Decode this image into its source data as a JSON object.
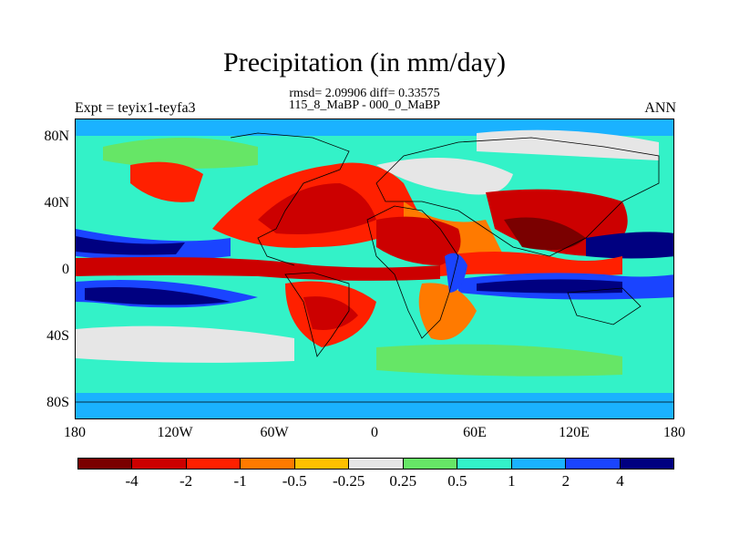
{
  "title": "Precipitation (in mm/day)",
  "stats": {
    "rmsd": "rmsd= 2.09906 diff= 0.33575",
    "comparison": "115_8_MaBP - 000_0_MaBP"
  },
  "experiment_label": "Expt = teyix1-teyfa3",
  "season": "ANN",
  "axes": {
    "lat_labels": [
      "80N",
      "40N",
      "0",
      "40S",
      "80S"
    ],
    "lon_labels": [
      "180",
      "120W",
      "60W",
      "0",
      "60E",
      "120E",
      "180"
    ]
  },
  "colorbar": {
    "colors": [
      "#7a0000",
      "#cc0000",
      "#ff2000",
      "#ff7a00",
      "#ffc000",
      "#e6e6e6",
      "#66e666",
      "#33f2c8",
      "#1ab2ff",
      "#1a44ff",
      "#000080"
    ],
    "labels": [
      "-4",
      "-2",
      "-1",
      "-0.5",
      "-0.25",
      "0.25",
      "0.5",
      "1",
      "2",
      "4"
    ]
  },
  "chart_data": {
    "type": "heatmap",
    "title": "Precipitation (in mm/day)",
    "subtitle": "rmsd= 2.09906 diff= 0.33575",
    "xlabel": "",
    "ylabel": "",
    "x_range": [
      -180,
      180
    ],
    "y_range": [
      -90,
      90
    ],
    "contour_levels": [
      -4,
      -2,
      -1,
      -0.5,
      -0.25,
      0.25,
      0.5,
      1,
      2,
      4
    ],
    "features": [
      {
        "region": "Tropical North Pacific band (~12N)",
        "value": 4
      },
      {
        "region": "Equatorial Pacific strip (~3N)",
        "value": -4
      },
      {
        "region": "South Pacific band (~15S)",
        "value": 4
      },
      {
        "region": "North America / Eurasia interior",
        "value": -2
      },
      {
        "region": "North Africa / Sahel",
        "value": -4
      },
      {
        "region": "South America interior",
        "value": -2
      },
      {
        "region": "South / East Asia",
        "value": -4
      },
      {
        "region": "Indian Ocean (~10S)",
        "value": 4
      },
      {
        "region": "Southern Ocean",
        "value": 0.5
      }
    ]
  }
}
